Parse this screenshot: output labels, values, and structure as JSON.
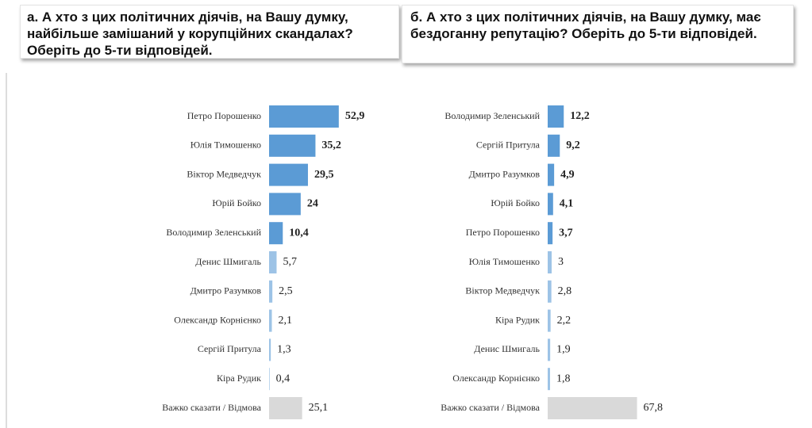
{
  "chart_data": [
    {
      "type": "bar",
      "orientation": "horizontal",
      "title": "а. А хто з цих політичних діячів, на Вашу думку, найбільше замішаний у корупційних скандалах? Оберіть до 5-ти відповідей.",
      "categories": [
        "Петро Порошенко",
        "Юлія Тимошенко",
        "Віктор Медведчук",
        "Юрій Бойко",
        "Володимир Зеленський",
        "Денис Шмигаль",
        "Дмитро Разумков",
        "Олександр Корнієнко",
        "Сергій Притула",
        "Кіра Рудик",
        "Важко сказати / Відмова"
      ],
      "values": [
        52.9,
        35.2,
        29.5,
        24,
        10.4,
        5.7,
        2.5,
        2.1,
        1.3,
        0.4,
        25.1
      ],
      "value_labels": [
        "52,9",
        "35,2",
        "29,5",
        "24",
        "10,4",
        "5,7",
        "2,5",
        "2,1",
        "1,3",
        "0,4",
        "25,1"
      ],
      "colors": [
        "#5b9bd5",
        "#5b9bd5",
        "#5b9bd5",
        "#5b9bd5",
        "#5b9bd5",
        "#9dc3e6",
        "#9dc3e6",
        "#9dc3e6",
        "#9dc3e6",
        "#9dc3e6",
        "#d9d9d9"
      ],
      "label_bold": [
        true,
        true,
        true,
        true,
        true,
        false,
        false,
        false,
        false,
        false,
        false
      ]
    },
    {
      "type": "bar",
      "orientation": "horizontal",
      "title": "б. А хто з цих політичних діячів, на Вашу думку, має бездоганну репутацію? Оберіть до 5-ти відповідей.",
      "categories": [
        "Володимир Зеленський",
        "Сергій Притула",
        "Дмитро Разумков",
        "Юрій Бойко",
        "Петро Порошенко",
        "Юлія Тимошенко",
        "Віктор Медведчук",
        "Кіра Рудик",
        "Денис Шмигаль",
        "Олександр Корнієнко",
        "Важко сказати / Відмова"
      ],
      "values": [
        12.2,
        9.2,
        4.9,
        4.1,
        3.7,
        3,
        2.8,
        2.2,
        1.9,
        1.8,
        67.8
      ],
      "value_labels": [
        "12,2",
        "9,2",
        "4,9",
        "4,1",
        "3,7",
        "3",
        "2,8",
        "2,2",
        "1,9",
        "1,8",
        "67,8"
      ],
      "colors": [
        "#5b9bd5",
        "#5b9bd5",
        "#5b9bd5",
        "#5b9bd5",
        "#5b9bd5",
        "#9dc3e6",
        "#9dc3e6",
        "#9dc3e6",
        "#9dc3e6",
        "#9dc3e6",
        "#d9d9d9"
      ],
      "label_bold": [
        true,
        true,
        true,
        true,
        true,
        false,
        false,
        false,
        false,
        false,
        false
      ]
    }
  ]
}
